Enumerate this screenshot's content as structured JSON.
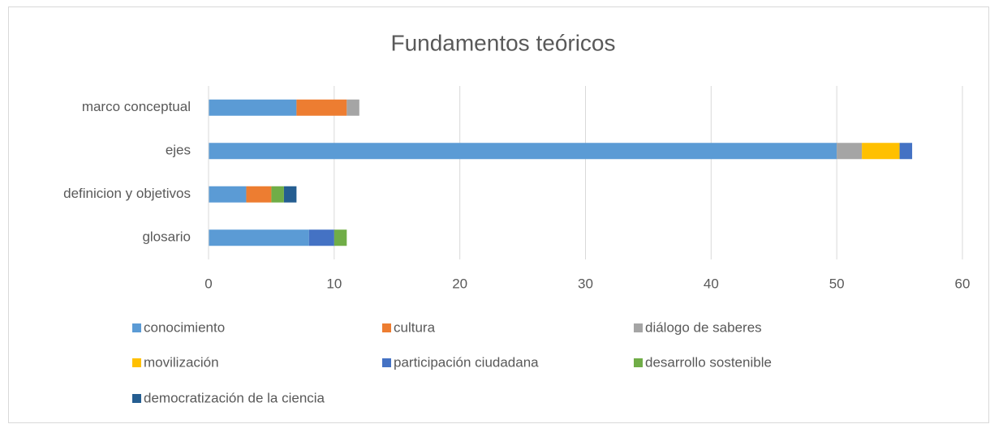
{
  "chart_data": {
    "type": "stacked_barh",
    "title": "Fundamentos teóricos",
    "categories": [
      "marco conceptual",
      "ejes",
      "definicion y objetivos",
      "glosario"
    ],
    "series": [
      {
        "name": "conocimiento",
        "color": "#5b9bd5",
        "values": [
          7,
          50,
          3,
          8
        ]
      },
      {
        "name": "cultura",
        "color": "#ed7d31",
        "values": [
          4,
          0,
          2,
          0
        ]
      },
      {
        "name": "diálogo de saberes",
        "color": "#a5a5a5",
        "values": [
          1,
          2,
          0,
          0
        ]
      },
      {
        "name": "movilización",
        "color": "#ffc000",
        "values": [
          0,
          3,
          0,
          0
        ]
      },
      {
        "name": "participación ciudadana",
        "color": "#4472c4",
        "values": [
          0,
          1,
          0,
          2
        ]
      },
      {
        "name": "desarrollo sostenible",
        "color": "#70ad47",
        "values": [
          0,
          0,
          1,
          1
        ]
      },
      {
        "name": "democratización de la ciencia",
        "color": "#255e91",
        "values": [
          0,
          0,
          1,
          0
        ]
      }
    ],
    "xlim": [
      0,
      60
    ],
    "xticks": [
      0,
      10,
      20,
      30,
      40,
      50,
      60
    ],
    "grid": true,
    "legend": "bottom"
  }
}
